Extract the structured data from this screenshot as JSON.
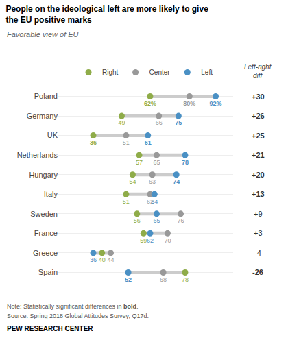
{
  "chart_data": {
    "type": "dot",
    "title": "People on the ideological left are more likely to give\nthe EU positive marks",
    "subtitle": "Favorable view of EU",
    "categories": [
      "Poland",
      "Germany",
      "UK",
      "Netherlands",
      "Hungary",
      "Italy",
      "Sweden",
      "France",
      "Greece",
      "Spain"
    ],
    "series": [
      {
        "name": "Right",
        "color": "#8fac49",
        "values": [
          62,
          49,
          36,
          57,
          54,
          51,
          56,
          59,
          40,
          78
        ],
        "value_labels": [
          "62%",
          "49",
          "36",
          "57",
          "54",
          "51",
          "56",
          "59",
          "40",
          "78"
        ],
        "bold": [
          true,
          false,
          true,
          false,
          false,
          false,
          false,
          false,
          false,
          false
        ]
      },
      {
        "name": "Center",
        "color": "#999999",
        "values": [
          80,
          66,
          51,
          65,
          63,
          62,
          76,
          70,
          44,
          68
        ],
        "value_labels": [
          "80%",
          "66",
          "51",
          "65",
          "63",
          "62",
          "76",
          "70",
          "44",
          "68"
        ],
        "bold": [
          true,
          false,
          false,
          false,
          false,
          false,
          false,
          false,
          false,
          false
        ]
      },
      {
        "name": "Left",
        "color": "#4a90c4",
        "values": [
          92,
          75,
          61,
          78,
          74,
          64,
          65,
          62,
          36,
          52
        ],
        "value_labels": [
          "92%",
          "75",
          "61",
          "78",
          "74",
          "64",
          "65",
          "62",
          "36",
          "52"
        ],
        "bold": [
          true,
          true,
          true,
          true,
          true,
          false,
          false,
          false,
          false,
          true
        ]
      }
    ],
    "diff": {
      "title": "Left-right\ndiff",
      "values": [
        30,
        26,
        25,
        21,
        20,
        13,
        9,
        3,
        -4,
        -26
      ],
      "value_labels": [
        "+30",
        "+26",
        "+25",
        "+21",
        "+20",
        "+13",
        "+9",
        "+3",
        "-4",
        "-26"
      ],
      "bold": [
        true,
        true,
        true,
        true,
        true,
        true,
        false,
        false,
        false,
        true
      ]
    },
    "xlim": [
      20,
      100
    ],
    "xticks": [],
    "tick_labels": "y",
    "data_labels": true,
    "grid": true,
    "legend": "top",
    "color": "#cccccc",
    "note": [
      "Note: Statistically significant differences in ",
      "bold",
      "."
    ],
    "source": "Source: Spring 2018 Global Attitudes Survey, Q17d.",
    "branding": "PEW RESEARCH CENTER"
  }
}
